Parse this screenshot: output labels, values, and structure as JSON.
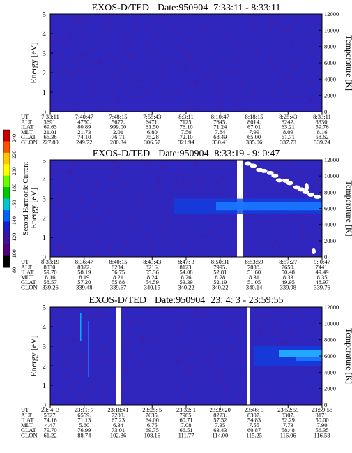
{
  "chart_data": [
    {
      "type": "heatmap",
      "title": "EXOS-D/TED",
      "date": "Date:950904",
      "time_range": "7:33:11 - 8:33:11",
      "ylabel": "Energy [eV]",
      "y2label": "Temperature [K]",
      "ylim": [
        0,
        5
      ],
      "y2lim": [
        0,
        12000
      ],
      "y_ticks": [
        0,
        1,
        2,
        3,
        4,
        5
      ],
      "y2_ticks": [
        0,
        2000,
        4000,
        6000,
        8000,
        10000,
        12000
      ],
      "row_labels": [
        "UT",
        "ALT",
        "ILAT",
        "MLT",
        "GLAT",
        "GLON"
      ],
      "columns": [
        [
          "7:33:11",
          "3691.",
          "69.63",
          "21.01",
          "66.36",
          "227.80"
        ],
        [
          "7:40:47",
          "4750.",
          "80.89",
          "21.73",
          "74.10",
          "249.72"
        ],
        [
          "7:48:15",
          "5677.",
          "999.00",
          "2.01",
          "76.71",
          "280.34"
        ],
        [
          "7:55:43",
          "6471.",
          "81.50",
          "6.80",
          "75.28",
          "306.57"
        ],
        [
          "8:3:11",
          "7125.",
          "76.10",
          "7.56",
          "72.10",
          "321.94"
        ],
        [
          "8:10:47",
          "7645.",
          "71.24",
          "7.84",
          "68.49",
          "330.41"
        ],
        [
          "8:18:15",
          "8014.",
          "67.01",
          "7.99",
          "65.00",
          "335.06"
        ],
        [
          "8:25:43",
          "8242.",
          "63.21",
          "8.09",
          "61.71",
          "337.73"
        ],
        [
          "8:33:11",
          "8330.",
          "59.76",
          "8.16",
          "58.62",
          "339.24"
        ]
      ],
      "features": {
        "background_level": "low",
        "gaps": []
      }
    },
    {
      "type": "heatmap",
      "title": "EXOS-D/TED",
      "date": "Date:950904",
      "time_range": "8:33:19 - 9: 0:47",
      "ylabel": "Energy [eV]",
      "y2label": "Temperature [K]",
      "ylim": [
        0,
        5
      ],
      "y2lim": [
        0,
        12000
      ],
      "y_ticks": [
        0,
        1,
        2,
        3,
        4,
        5
      ],
      "y2_ticks": [
        0,
        2000,
        4000,
        6000,
        8000,
        10000,
        12000
      ],
      "row_labels": [
        "UT",
        "ALT",
        "ILAT",
        "MLT",
        "GLAT",
        "GLON"
      ],
      "columns": [
        [
          "8:33:19",
          "8330.",
          "59.70",
          "8.16",
          "58.57",
          "339.26"
        ],
        [
          "8:36:47",
          "8322.",
          "58.19",
          "8.19",
          "57.20",
          "339.48"
        ],
        [
          "8:40:15",
          "8284.",
          "56.75",
          "8.21",
          "55.88",
          "339.67"
        ],
        [
          "8:43:43",
          "8216.",
          "55.36",
          "8.24",
          "54.59",
          "340.15"
        ],
        [
          "8:47: 3",
          "8123.",
          "54.08",
          "8.26",
          "53.39",
          "340.22"
        ],
        [
          "8:50:31",
          "7995.",
          "52.81",
          "8.28",
          "52.19",
          "340.22"
        ],
        [
          "8:53:59",
          "7838.",
          "51.60",
          "8.31",
          "51.05",
          "340.14"
        ],
        [
          "8:57:27",
          "7650.",
          "50.48",
          "8.33",
          "49.95",
          "339.98"
        ],
        [
          "9: 0:47",
          "7441.",
          "49.49",
          "8.35",
          "48.97",
          "339.76"
        ]
      ],
      "features": {
        "background_level": "low",
        "enhanced_band_energy_ev": [
          2.2,
          3.0
        ],
        "gaps": [
          "8:51-8:53"
        ]
      }
    },
    {
      "type": "heatmap",
      "title": "EXOS-D/TED",
      "date": "Date:950904",
      "time_range": "23: 4: 3 - 23:59:55",
      "ylabel": "Energy [eV]",
      "y2label": "Temperature [K]",
      "ylim": [
        0,
        5
      ],
      "y2lim": [
        0,
        12000
      ],
      "y_ticks": [
        0,
        1,
        2,
        3,
        4,
        5
      ],
      "y2_ticks": [
        0,
        2000,
        4000,
        6000,
        8000,
        10000,
        12000
      ],
      "row_labels": [
        "UT",
        "ALT",
        "ILAT",
        "MLT",
        "GLAT",
        "GLON"
      ],
      "columns": [
        [
          "23: 4: 3",
          "5827.",
          "74.16",
          "4.47",
          "79.70",
          "61.22"
        ],
        [
          "23:11: 7",
          "6559.",
          "71.13",
          "5.60",
          "76.99",
          "88.74"
        ],
        [
          "23:18:41",
          "7203.",
          "67.23",
          "6.34",
          "73.01",
          "102.36"
        ],
        [
          "23:25: 5",
          "7635.",
          "64.00",
          "6.75",
          "69.75",
          "108.16"
        ],
        [
          "23:32: 1",
          "7985.",
          "60.71",
          "7.08",
          "66.51",
          "111.77"
        ],
        [
          "23:39:20",
          "8223.",
          "57.52",
          "7.35",
          "63.43",
          "114.00"
        ],
        [
          "23:46: 3",
          "8307.",
          "54.83",
          "7.55",
          "60.87",
          "115.25"
        ],
        [
          "23:52:59",
          "8307.",
          "52.29",
          "7.73",
          "58.48",
          "116.06"
        ],
        [
          "23:59:55",
          "8171.",
          "50.00",
          "7.90",
          "56.35",
          "116.58"
        ]
      ],
      "features": {
        "background_level": "low",
        "enhanced_band_energy_ev": [
          2.0,
          3.0
        ],
        "gaps": [
          "23:10",
          "23:19"
        ]
      }
    }
  ],
  "colorbar": {
    "label": "Second Harmonic Current",
    "ticks": [
      "240",
      "220",
      "200",
      "180",
      "160",
      "140",
      "120",
      "100",
      "80"
    ],
    "colors": [
      "#c80000",
      "#ff5000",
      "#ffc800",
      "#ffff00",
      "#64ff00",
      "#00c800",
      "#00c8c8",
      "#0064ff",
      "#1e1ec8",
      "#3c14a0",
      "#500078",
      "#000000"
    ]
  }
}
